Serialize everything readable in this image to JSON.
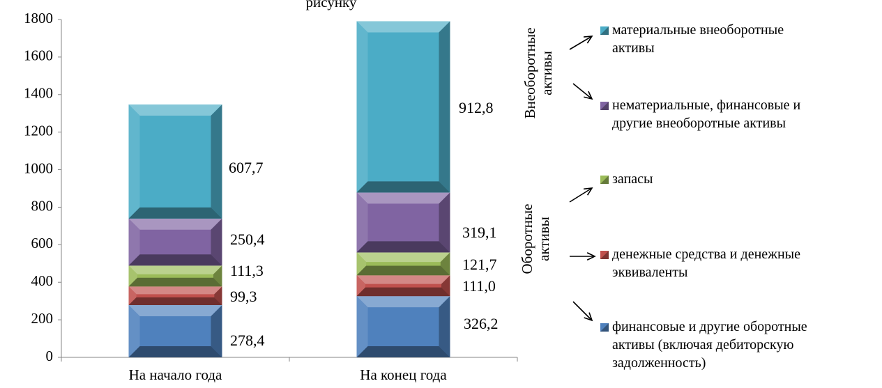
{
  "chart_data": {
    "type": "bar",
    "stacked": true,
    "title": "рисунку",
    "categories": [
      "На начало года",
      "На конец года"
    ],
    "ylim": [
      0,
      1800
    ],
    "yticks": [
      0,
      200,
      400,
      600,
      800,
      1000,
      1200,
      1400,
      1600,
      1800
    ],
    "grid": false,
    "series": [
      {
        "name": "финансовые и другие оборотные активы (включая дебиторскую задолженность)",
        "values": [
          278.4,
          326.2
        ],
        "labels": [
          "278,4",
          "326,2"
        ],
        "color": "#4F81BD"
      },
      {
        "name": "денежные средства и денежные эквиваленты",
        "values": [
          99.3,
          111.0
        ],
        "labels": [
          "99,3",
          "111,0"
        ],
        "color": "#C0504D"
      },
      {
        "name": "запасы",
        "values": [
          111.3,
          121.7
        ],
        "labels": [
          "111,3",
          "121,7"
        ],
        "color": "#9BBB59"
      },
      {
        "name": "нематериальные, финансовые и другие внеоборотные активы",
        "values": [
          250.4,
          319.1
        ],
        "labels": [
          "250,4",
          "319,1"
        ],
        "color": "#8064A2"
      },
      {
        "name": "материальные внеоборотные активы",
        "values": [
          607.7,
          912.8
        ],
        "labels": [
          "607,7",
          "912,8"
        ],
        "color": "#4BACC6"
      }
    ],
    "group_labels": {
      "non_current": "Внеоборотные активы",
      "current": "Оборотные активы"
    },
    "legend_position": "right"
  }
}
